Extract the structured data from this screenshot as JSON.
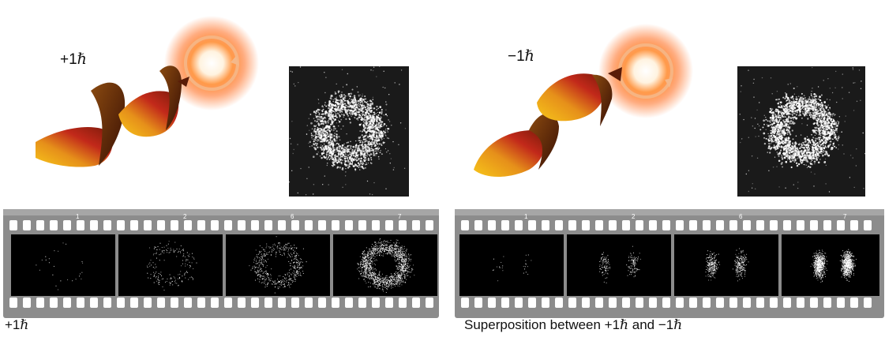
{
  "panels": [
    {
      "id": "left",
      "helix_label": "+1",
      "caption_text": "+1",
      "frame_numbers": [
        "1",
        "2",
        "6",
        "7"
      ],
      "pattern": "ring"
    },
    {
      "id": "right",
      "helix_label": "−1",
      "caption_text": "Superposition between +1",
      "caption_mid": " and −1",
      "frame_numbers": [
        "1",
        "2",
        "6",
        "7"
      ],
      "pattern": "lobes"
    }
  ],
  "hbar_symbol": "ℏ",
  "colors": {
    "helix_dark": "#5a1c08",
    "helix_red": "#c2291a",
    "helix_yellow": "#f7c61a",
    "glow": "#ff6a1a",
    "film": "#8c8c8c"
  }
}
